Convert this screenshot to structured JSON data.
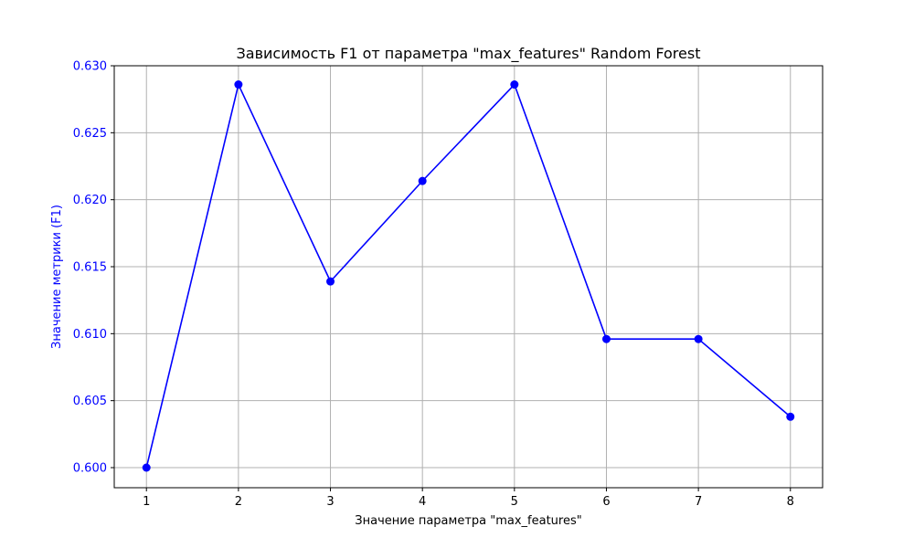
{
  "chart_data": {
    "type": "line",
    "title": "Зависимость F1 от параметра \"max_features\" Random Forest",
    "xlabel": "Значение параметра \"max_features\"",
    "ylabel": "Значение метрики (F1)",
    "x": [
      1,
      2,
      3,
      4,
      5,
      6,
      7,
      8
    ],
    "series": [
      {
        "values": [
          0.6,
          0.6286,
          0.6139,
          0.6214,
          0.6286,
          0.6096,
          0.6096,
          0.6038
        ],
        "color": "#0000ff",
        "marker": "circle"
      }
    ],
    "xticks": [
      "1",
      "2",
      "3",
      "4",
      "5",
      "6",
      "7",
      "8"
    ],
    "yticks": [
      "0.600",
      "0.605",
      "0.610",
      "0.615",
      "0.620",
      "0.625",
      "0.630"
    ],
    "ytick_values": [
      0.6,
      0.605,
      0.61,
      0.615,
      0.62,
      0.625,
      0.63
    ],
    "xlim": [
      0.65,
      8.35
    ],
    "ylim": [
      0.5985,
      0.63
    ],
    "grid": true,
    "ylabel_color": "#0000ff",
    "ytick_color": "#0000ff",
    "grid_color": "#b0b0b0"
  }
}
